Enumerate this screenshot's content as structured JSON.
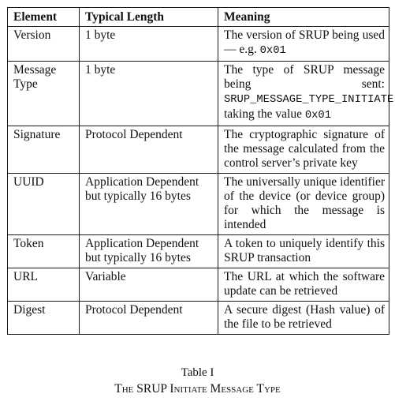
{
  "table": {
    "headers": [
      "Element",
      "Typical Length",
      "Meaning"
    ],
    "rows": [
      {
        "element": "Version",
        "length": "1 byte",
        "meaning": [
          {
            "t": "The version of SRUP being used — e.g. ",
            "mono": false
          },
          {
            "t": "0x01",
            "mono": true
          }
        ]
      },
      {
        "element": "Message Type",
        "length": "1 byte",
        "meaning": [
          {
            "t": "The type of SRUP message being sent: ",
            "mono": false
          },
          {
            "t": "SRUP_MESSAGE_TYPE_INITIATE",
            "mono": true
          },
          {
            "t": " taking the value ",
            "mono": false
          },
          {
            "t": "0x01",
            "mono": true
          }
        ]
      },
      {
        "element": "Signature",
        "length": "Protocol Dependent",
        "meaning": [
          {
            "t": "The cryptographic signature of the message calculated from the control server’s pri­vate key",
            "mono": false
          }
        ]
      },
      {
        "element": "UUID",
        "length": "Application Dependent but typically 16 bytes",
        "meaning": [
          {
            "t": "The universally unique iden­tifier of the device (or device group) for which the mes­sage is intended",
            "mono": false
          }
        ]
      },
      {
        "element": "Token",
        "length": "Application Dependent but typically 16 bytes",
        "meaning": [
          {
            "t": "A token to uniquely identify this SRUP transaction",
            "mono": false
          }
        ]
      },
      {
        "element": "URL",
        "length": "Variable",
        "meaning": [
          {
            "t": "The URL at which the soft­ware update can be retrieved",
            "mono": false
          }
        ]
      },
      {
        "element": "Digest",
        "length": "Protocol Dependent",
        "meaning": [
          {
            "t": "A secure digest (Hash value) of the file to be retrieved",
            "mono": false
          }
        ]
      }
    ]
  },
  "caption": {
    "number": "Table I",
    "title": "The SRUP Initiate Message Type"
  }
}
